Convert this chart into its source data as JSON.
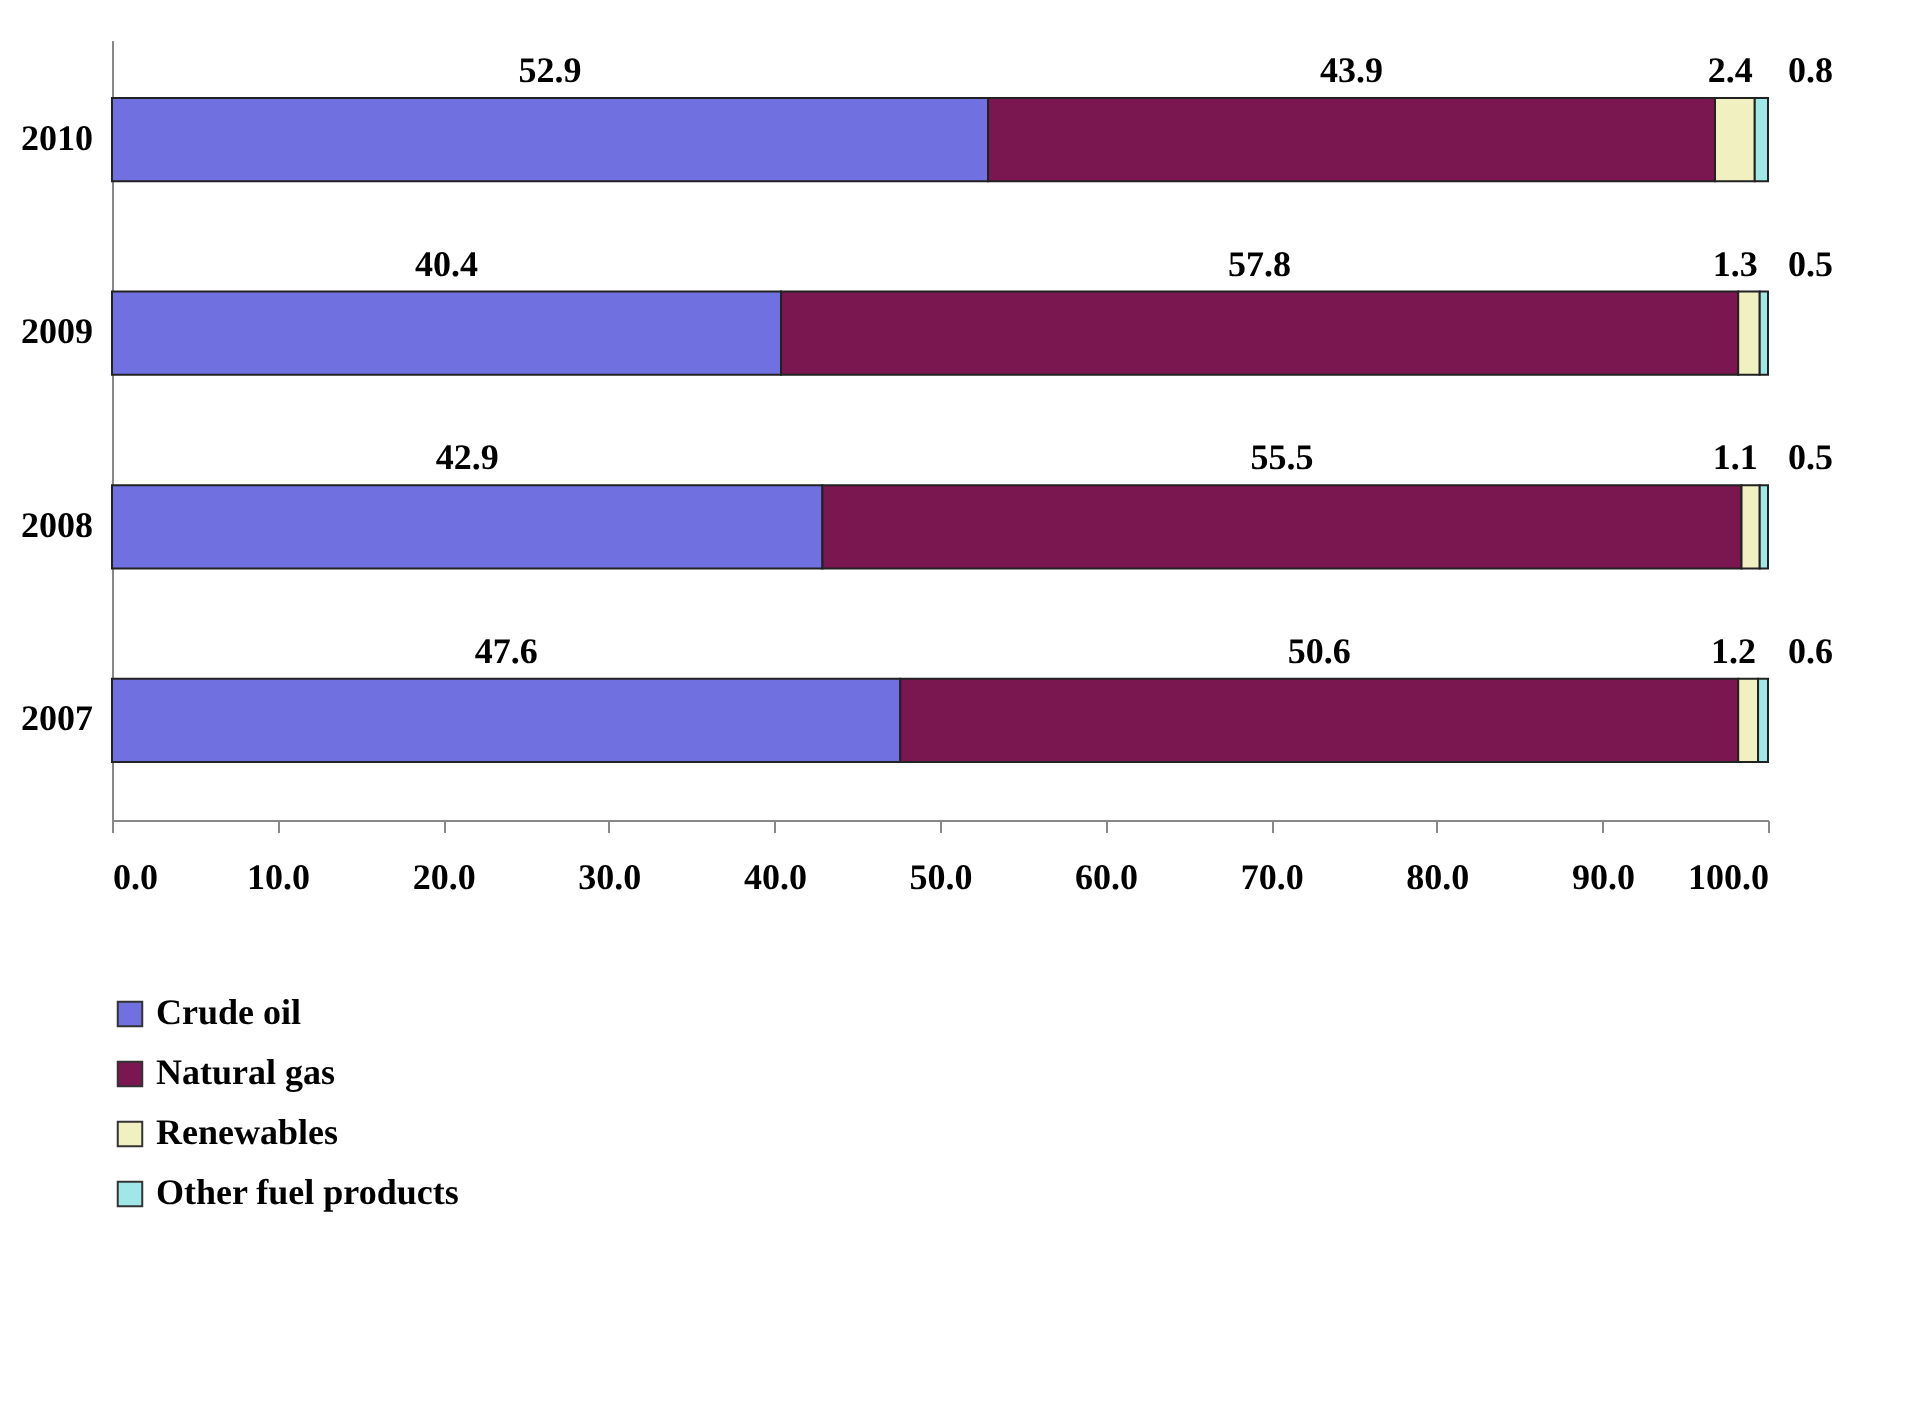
{
  "chart_data": {
    "type": "bar",
    "orientation": "horizontal",
    "stacked": true,
    "categories": [
      "2010",
      "2009",
      "2008",
      "2007"
    ],
    "series": [
      {
        "name": "Crude oil",
        "color": "#7070e0",
        "values": [
          52.9,
          40.4,
          42.9,
          47.6
        ]
      },
      {
        "name": "Natural gas",
        "color": "#7a1650",
        "values": [
          43.9,
          57.8,
          55.5,
          50.6
        ]
      },
      {
        "name": "Renewables",
        "color": "#f0f0c0",
        "values": [
          2.4,
          1.3,
          1.1,
          1.2
        ]
      },
      {
        "name": "Other fuel products",
        "color": "#a0e8e8",
        "values": [
          0.8,
          0.5,
          0.5,
          0.6
        ]
      }
    ],
    "xlim": [
      0,
      100
    ],
    "xticks": [
      {
        "value": 0,
        "label": "0.0"
      },
      {
        "value": 10,
        "label": "10.0"
      },
      {
        "value": 20,
        "label": "20.0"
      },
      {
        "value": 30,
        "label": "30.0"
      },
      {
        "value": 40,
        "label": "40.0"
      },
      {
        "value": 50,
        "label": "50.0"
      },
      {
        "value": 60,
        "label": "60.0"
      },
      {
        "value": 70,
        "label": "70.0"
      },
      {
        "value": 80,
        "label": "80.0"
      },
      {
        "value": 90,
        "label": "90.0"
      },
      {
        "value": 100,
        "label": "100.0"
      }
    ],
    "data_labels": true,
    "grid": false,
    "legend": "bottom"
  }
}
